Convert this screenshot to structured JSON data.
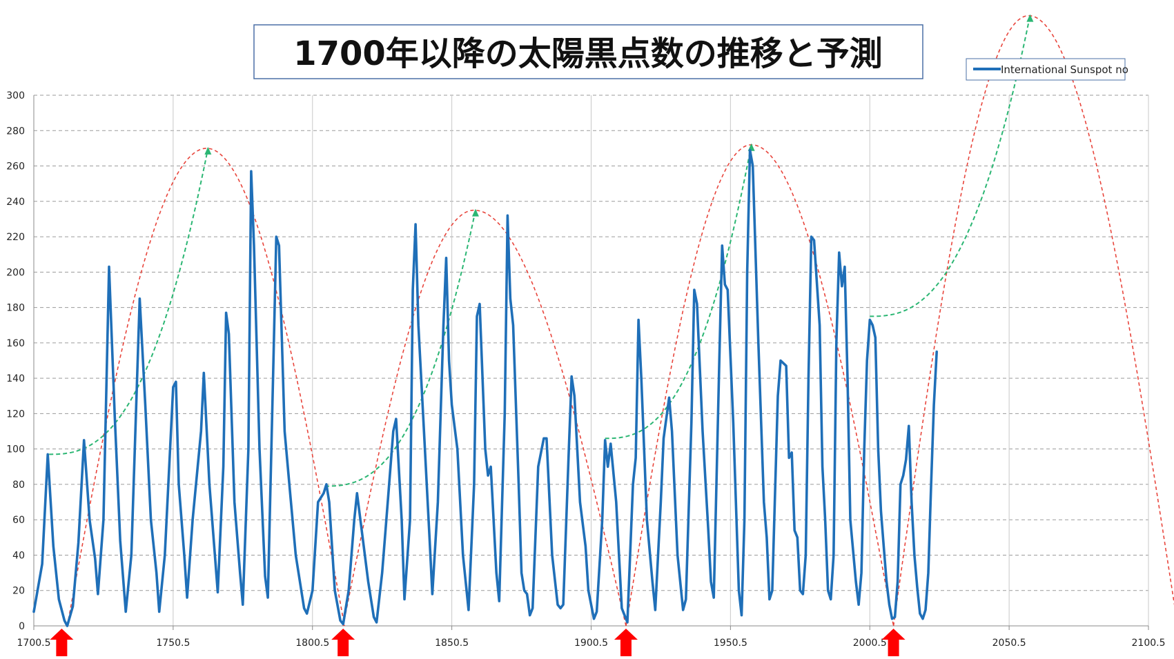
{
  "chart_data": {
    "type": "line",
    "title": "1700年以降の太陽黒点数の推移と予測",
    "xlabel": "",
    "ylabel": "",
    "xlim": [
      1700.5,
      2100.5
    ],
    "ylim": [
      0,
      300
    ],
    "x_ticks": [
      "1700.5",
      "1750.5",
      "1800.5",
      "1850.5",
      "1900.5",
      "1950.5",
      "2000.5",
      "2050.5",
      "2100.5"
    ],
    "y_ticks": [
      "0",
      "20",
      "40",
      "60",
      "80",
      "100",
      "120",
      "140",
      "160",
      "180",
      "200",
      "220",
      "240",
      "260",
      "280",
      "300"
    ],
    "grid": true,
    "legend": {
      "placement": "top-right",
      "entries": [
        "International Sunspot no"
      ]
    },
    "series": [
      {
        "name": "International Sunspot no",
        "color": "#1f6fb8",
        "points": [
          [
            1700.5,
            8
          ],
          [
            1703.5,
            35
          ],
          [
            1705.5,
            97
          ],
          [
            1707.5,
            45
          ],
          [
            1709.5,
            15
          ],
          [
            1711.5,
            3
          ],
          [
            1712.5,
            0
          ],
          [
            1714.5,
            11
          ],
          [
            1716.5,
            47
          ],
          [
            1718.5,
            105
          ],
          [
            1720.5,
            60
          ],
          [
            1722.5,
            38
          ],
          [
            1723.5,
            18
          ],
          [
            1725.5,
            60
          ],
          [
            1727.5,
            203
          ],
          [
            1729.5,
            120
          ],
          [
            1731.5,
            48
          ],
          [
            1733.5,
            8
          ],
          [
            1735.5,
            40
          ],
          [
            1738.5,
            185
          ],
          [
            1740.5,
            125
          ],
          [
            1742.5,
            60
          ],
          [
            1744.5,
            30
          ],
          [
            1745.5,
            8
          ],
          [
            1747.5,
            40
          ],
          [
            1750.5,
            135
          ],
          [
            1751.5,
            138
          ],
          [
            1752.5,
            80
          ],
          [
            1754.5,
            40
          ],
          [
            1755.5,
            16
          ],
          [
            1757.5,
            60
          ],
          [
            1760.5,
            110
          ],
          [
            1761.5,
            143
          ],
          [
            1763.5,
            80
          ],
          [
            1764.5,
            60
          ],
          [
            1766.5,
            19
          ],
          [
            1768.5,
            90
          ],
          [
            1769.5,
            177
          ],
          [
            1770.5,
            165
          ],
          [
            1772.5,
            70
          ],
          [
            1774.5,
            30
          ],
          [
            1775.5,
            12
          ],
          [
            1777.5,
            100
          ],
          [
            1778.5,
            257
          ],
          [
            1779.5,
            215
          ],
          [
            1781.5,
            100
          ],
          [
            1783.5,
            28
          ],
          [
            1784.5,
            16
          ],
          [
            1786.5,
            150
          ],
          [
            1787.5,
            220
          ],
          [
            1788.5,
            215
          ],
          [
            1790.5,
            110
          ],
          [
            1792.5,
            75
          ],
          [
            1794.5,
            40
          ],
          [
            1797.5,
            10
          ],
          [
            1798.5,
            7
          ],
          [
            1800.5,
            20
          ],
          [
            1802.5,
            70
          ],
          [
            1804.5,
            75
          ],
          [
            1805.5,
            80
          ],
          [
            1806.5,
            70
          ],
          [
            1808.5,
            20
          ],
          [
            1810.5,
            3
          ],
          [
            1811.5,
            1
          ],
          [
            1813.5,
            20
          ],
          [
            1815.5,
            60
          ],
          [
            1816.5,
            75
          ],
          [
            1818.5,
            50
          ],
          [
            1820.5,
            25
          ],
          [
            1822.5,
            5
          ],
          [
            1823.5,
            2
          ],
          [
            1825.5,
            30
          ],
          [
            1827.5,
            70
          ],
          [
            1829.5,
            110
          ],
          [
            1830.5,
            117
          ],
          [
            1832.5,
            60
          ],
          [
            1833.5,
            15
          ],
          [
            1835.5,
            60
          ],
          [
            1836.5,
            190
          ],
          [
            1837.5,
            227
          ],
          [
            1838.5,
            170
          ],
          [
            1840.5,
            110
          ],
          [
            1842.5,
            50
          ],
          [
            1843.5,
            18
          ],
          [
            1845.5,
            70
          ],
          [
            1847.5,
            170
          ],
          [
            1848.5,
            208
          ],
          [
            1849.5,
            150
          ],
          [
            1850.5,
            125
          ],
          [
            1852.5,
            100
          ],
          [
            1854.5,
            40
          ],
          [
            1856.5,
            9
          ],
          [
            1858.5,
            80
          ],
          [
            1859.5,
            175
          ],
          [
            1860.5,
            182
          ],
          [
            1862.5,
            100
          ],
          [
            1863.5,
            85
          ],
          [
            1864.5,
            90
          ],
          [
            1866.5,
            30
          ],
          [
            1867.5,
            14
          ],
          [
            1869.5,
            120
          ],
          [
            1870.5,
            232
          ],
          [
            1871.5,
            185
          ],
          [
            1872.5,
            170
          ],
          [
            1874.5,
            80
          ],
          [
            1875.5,
            30
          ],
          [
            1876.5,
            20
          ],
          [
            1877.5,
            18
          ],
          [
            1878.5,
            6
          ],
          [
            1879.5,
            10
          ],
          [
            1881.5,
            90
          ],
          [
            1883.5,
            106
          ],
          [
            1884.5,
            106
          ],
          [
            1886.5,
            40
          ],
          [
            1888.5,
            12
          ],
          [
            1889.5,
            10
          ],
          [
            1890.5,
            12
          ],
          [
            1892.5,
            100
          ],
          [
            1893.5,
            141
          ],
          [
            1894.5,
            130
          ],
          [
            1896.5,
            70
          ],
          [
            1898.5,
            45
          ],
          [
            1899.5,
            20
          ],
          [
            1901.5,
            4
          ],
          [
            1902.5,
            8
          ],
          [
            1904.5,
            60
          ],
          [
            1905.5,
            105
          ],
          [
            1906.5,
            90
          ],
          [
            1907.5,
            103
          ],
          [
            1909.5,
            70
          ],
          [
            1911.5,
            10
          ],
          [
            1913.5,
            2
          ],
          [
            1915.5,
            80
          ],
          [
            1916.5,
            95
          ],
          [
            1917.5,
            173
          ],
          [
            1918.5,
            140
          ],
          [
            1920.5,
            60
          ],
          [
            1922.5,
            25
          ],
          [
            1923.5,
            9
          ],
          [
            1925.5,
            70
          ],
          [
            1926.5,
            106
          ],
          [
            1928.5,
            129
          ],
          [
            1929.5,
            110
          ],
          [
            1931.5,
            40
          ],
          [
            1933.5,
            9
          ],
          [
            1934.5,
            15
          ],
          [
            1936.5,
            115
          ],
          [
            1937.5,
            190
          ],
          [
            1938.5,
            182
          ],
          [
            1940.5,
            110
          ],
          [
            1942.5,
            55
          ],
          [
            1943.5,
            25
          ],
          [
            1944.5,
            16
          ],
          [
            1946.5,
            150
          ],
          [
            1947.5,
            215
          ],
          [
            1948.5,
            193
          ],
          [
            1949.5,
            190
          ],
          [
            1951.5,
            115
          ],
          [
            1953.5,
            20
          ],
          [
            1954.5,
            6
          ],
          [
            1955.5,
            60
          ],
          [
            1956.5,
            200
          ],
          [
            1957.5,
            269
          ],
          [
            1958.5,
            260
          ],
          [
            1960.5,
            160
          ],
          [
            1962.5,
            70
          ],
          [
            1963.5,
            50
          ],
          [
            1964.5,
            15
          ],
          [
            1965.5,
            20
          ],
          [
            1967.5,
            130
          ],
          [
            1968.5,
            150
          ],
          [
            1970.5,
            147
          ],
          [
            1971.5,
            95
          ],
          [
            1972.5,
            98
          ],
          [
            1973.5,
            54
          ],
          [
            1974.5,
            50
          ],
          [
            1975.5,
            20
          ],
          [
            1976.5,
            18
          ],
          [
            1977.5,
            40
          ],
          [
            1978.5,
            140
          ],
          [
            1979.5,
            220
          ],
          [
            1980.5,
            218
          ],
          [
            1982.5,
            170
          ],
          [
            1983.5,
            90
          ],
          [
            1984.5,
            60
          ],
          [
            1985.5,
            20
          ],
          [
            1986.5,
            15
          ],
          [
            1987.5,
            40
          ],
          [
            1988.5,
            160
          ],
          [
            1989.5,
            211
          ],
          [
            1990.5,
            192
          ],
          [
            1991.5,
            203
          ],
          [
            1992.5,
            140
          ],
          [
            1993.5,
            60
          ],
          [
            1995.5,
            25
          ],
          [
            1996.5,
            12
          ],
          [
            1997.5,
            30
          ],
          [
            1998.5,
            100
          ],
          [
            1999.5,
            150
          ],
          [
            2000.5,
            173
          ],
          [
            2001.5,
            170
          ],
          [
            2002.5,
            163
          ],
          [
            2003.5,
            100
          ],
          [
            2004.5,
            65
          ],
          [
            2005.5,
            45
          ],
          [
            2006.5,
            25
          ],
          [
            2007.5,
            12
          ],
          [
            2008.5,
            4
          ],
          [
            2009.5,
            5
          ],
          [
            2010.5,
            25
          ],
          [
            2011.5,
            80
          ],
          [
            2012.5,
            85
          ],
          [
            2013.5,
            94
          ],
          [
            2014.5,
            113
          ],
          [
            2015.5,
            70
          ],
          [
            2016.5,
            40
          ],
          [
            2017.5,
            22
          ],
          [
            2018.5,
            7
          ],
          [
            2019.5,
            4
          ],
          [
            2020.5,
            9
          ],
          [
            2021.5,
            30
          ],
          [
            2022.5,
            80
          ],
          [
            2023.5,
            125
          ],
          [
            2024.5,
            155
          ]
        ]
      }
    ],
    "envelopes": {
      "color": "#e8453c",
      "style": "dashed",
      "arches": [
        {
          "start": 1712.5,
          "peak_x": 1762.5,
          "peak_y": 270,
          "end": 1812
        },
        {
          "start": 1811.5,
          "peak_x": 1858.5,
          "peak_y": 235,
          "end": 1913
        },
        {
          "start": 1913,
          "peak_x": 1958,
          "peak_y": 272,
          "end": 2009
        },
        {
          "start": 2009,
          "peak_x": 2057.5,
          "peak_y": 345,
          "end": 2111
        }
      ]
    },
    "growth_arrows": {
      "color": "#2bb673",
      "style": "dashed",
      "curves": [
        {
          "from": [
            1706,
            97
          ],
          "to": [
            1763,
            270
          ]
        },
        {
          "from": [
            1805,
            79
          ],
          "to": [
            1859,
            235
          ]
        },
        {
          "from": [
            1905.5,
            106
          ],
          "to": [
            1958,
            272
          ]
        },
        {
          "from": [
            2000.5,
            175
          ],
          "to": [
            2058,
            345
          ]
        }
      ]
    },
    "minimum_markers": {
      "color": "#ff0000",
      "x": [
        1710.5,
        1811.5,
        1913,
        2009
      ]
    }
  }
}
